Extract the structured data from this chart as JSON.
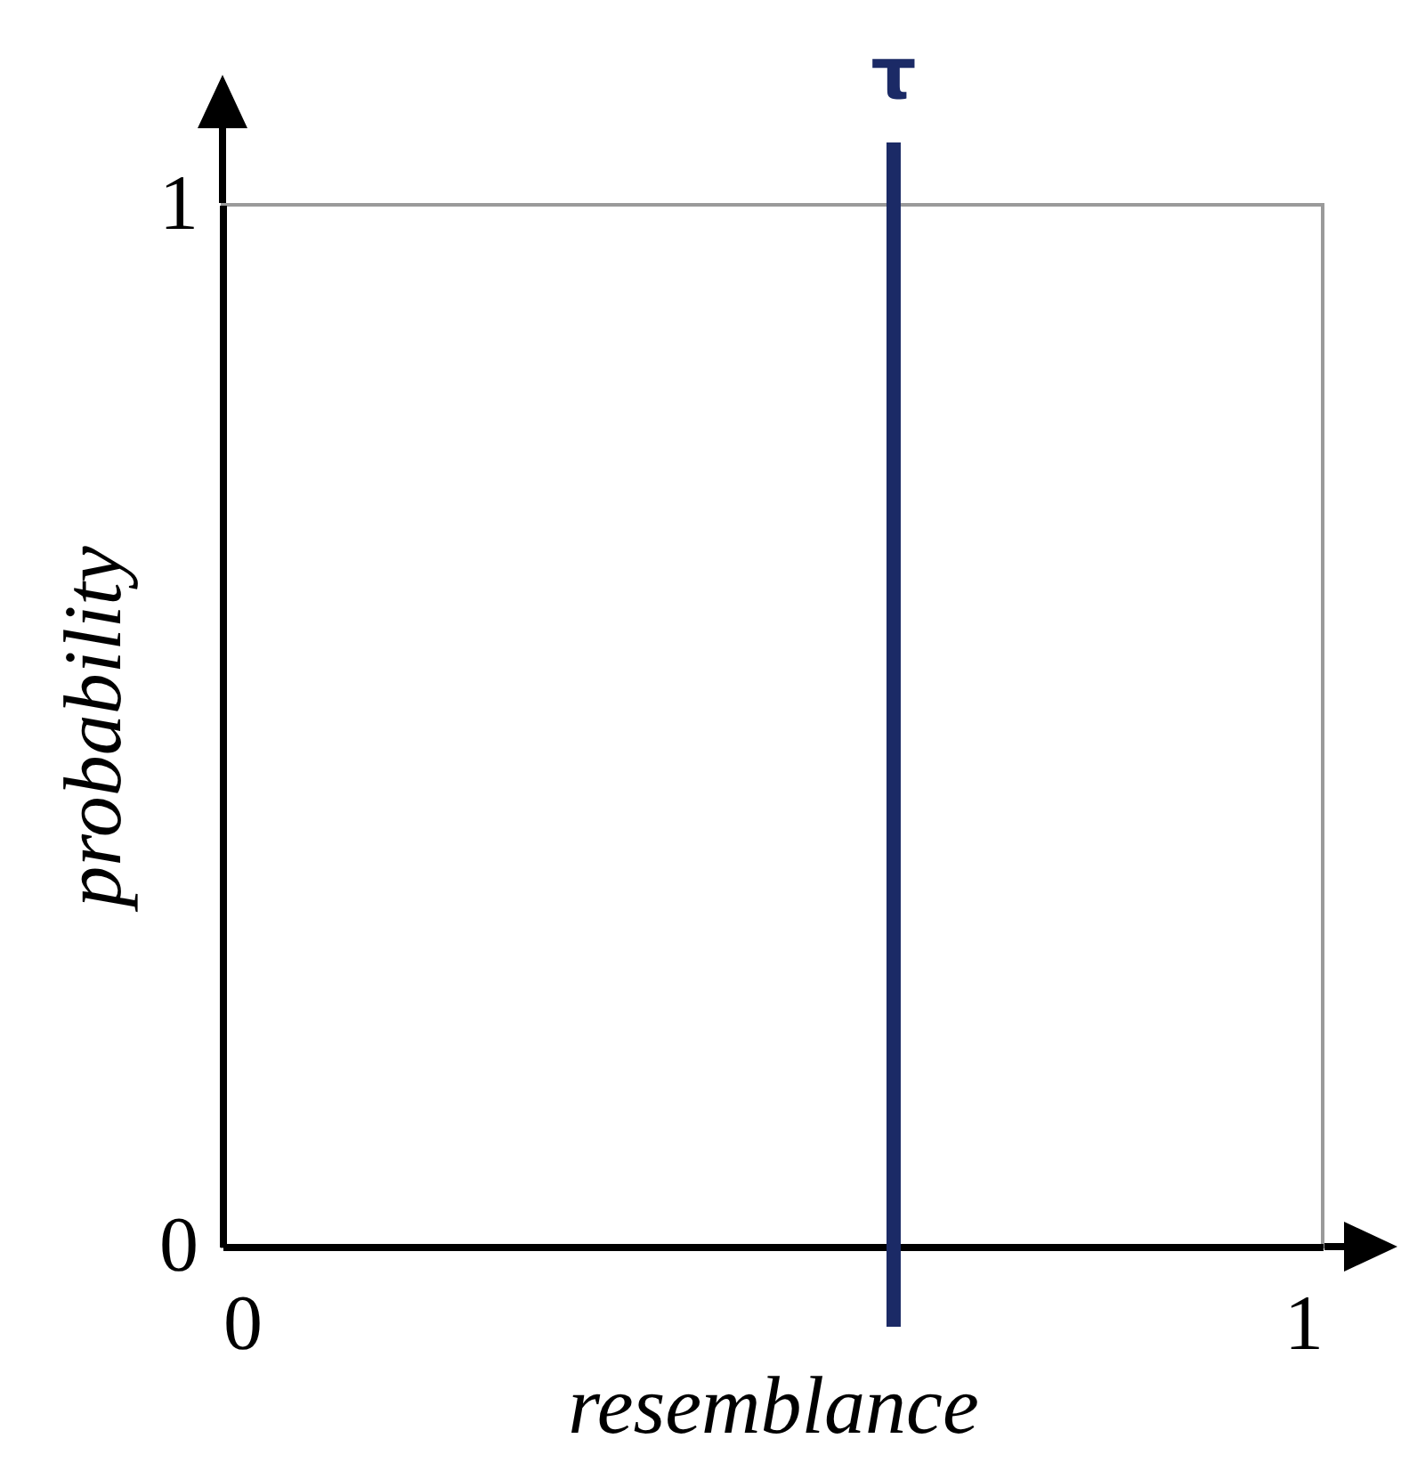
{
  "chart_data": {
    "type": "line",
    "xlabel": "resemblance",
    "ylabel": "probability",
    "xlim": [
      0,
      1
    ],
    "ylim": [
      0,
      1
    ],
    "xticks": [
      0,
      1
    ],
    "yticks": [
      0,
      1
    ],
    "ref_lines": [
      {
        "axis": "x",
        "value": 0.61,
        "label": "τ",
        "color": "#1b2a66"
      }
    ]
  }
}
